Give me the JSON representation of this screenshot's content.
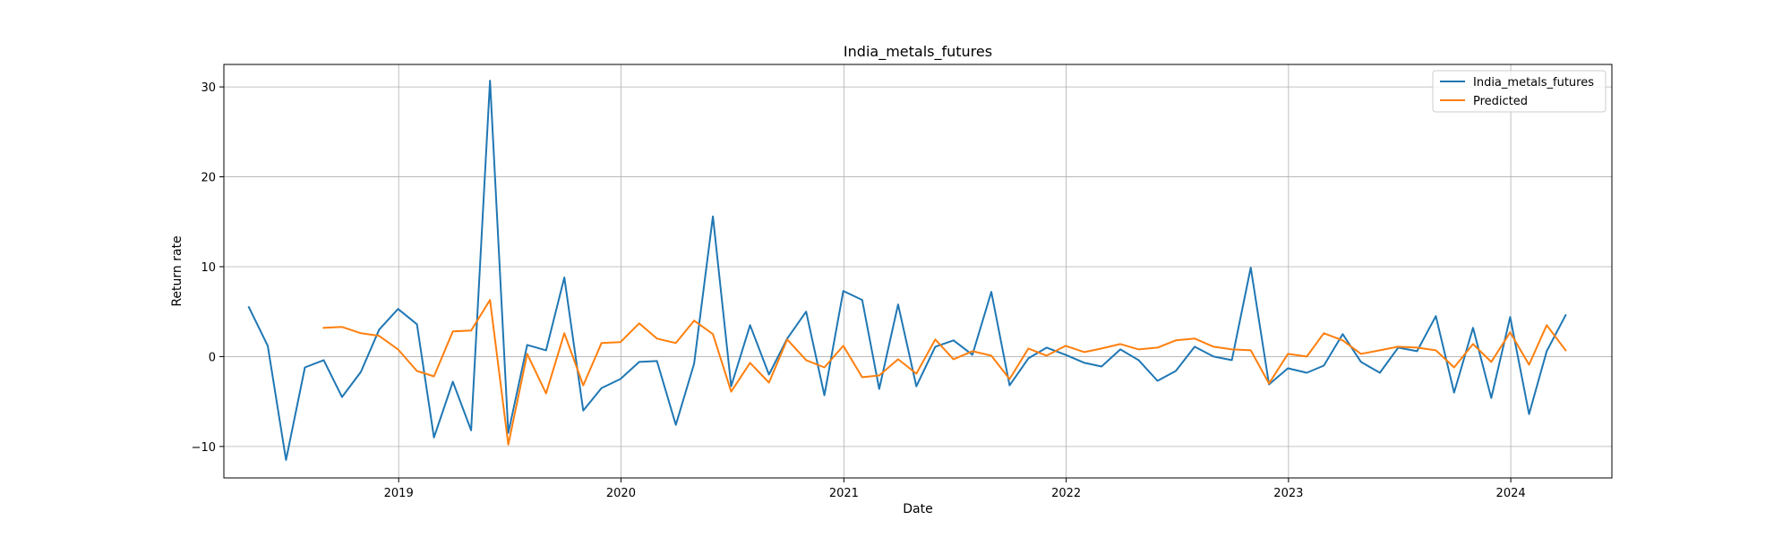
{
  "chart_data": {
    "type": "line",
    "title": "India_metals_futures",
    "xlabel": "Date",
    "ylabel": "Return rate",
    "xlim": [
      "2018-03-20",
      "2024-06-15"
    ],
    "ylim": [
      -13.5,
      32.5
    ],
    "x_ticks": [
      "2019",
      "2020",
      "2021",
      "2022",
      "2023",
      "2024"
    ],
    "y_ticks": [
      -10,
      0,
      10,
      20,
      30
    ],
    "grid": true,
    "legend_position": "top-right",
    "series": [
      {
        "name": "India_metals_futures",
        "color": "#1f77b4",
        "points": [
          [
            "2018-04-30",
            5.5
          ],
          [
            "2018-05-31",
            1.2
          ],
          [
            "2018-06-30",
            -11.5
          ],
          [
            "2018-07-31",
            -1.2
          ],
          [
            "2018-08-31",
            -0.4
          ],
          [
            "2018-09-30",
            -4.5
          ],
          [
            "2018-10-31",
            -1.7
          ],
          [
            "2018-11-30",
            3.0
          ],
          [
            "2018-12-31",
            5.3
          ],
          [
            "2019-01-31",
            3.6
          ],
          [
            "2019-02-28",
            -9.0
          ],
          [
            "2019-03-31",
            -2.8
          ],
          [
            "2019-04-30",
            -8.2
          ],
          [
            "2019-05-31",
            30.7
          ],
          [
            "2019-06-30",
            -8.5
          ],
          [
            "2019-07-31",
            1.3
          ],
          [
            "2019-08-31",
            0.7
          ],
          [
            "2019-09-30",
            8.8
          ],
          [
            "2019-10-31",
            -6.0
          ],
          [
            "2019-11-30",
            -3.5
          ],
          [
            "2019-12-31",
            -2.5
          ],
          [
            "2020-01-31",
            -0.6
          ],
          [
            "2020-02-29",
            -0.5
          ],
          [
            "2020-03-31",
            -7.6
          ],
          [
            "2020-04-30",
            -0.8
          ],
          [
            "2020-05-31",
            15.6
          ],
          [
            "2020-06-30",
            -3.3
          ],
          [
            "2020-07-31",
            3.5
          ],
          [
            "2020-08-31",
            -2.0
          ],
          [
            "2020-09-30",
            2.0
          ],
          [
            "2020-10-31",
            5.0
          ],
          [
            "2020-11-30",
            -4.3
          ],
          [
            "2020-12-31",
            7.3
          ],
          [
            "2021-01-31",
            6.3
          ],
          [
            "2021-02-28",
            -3.6
          ],
          [
            "2021-03-31",
            5.8
          ],
          [
            "2021-04-30",
            -3.3
          ],
          [
            "2021-05-31",
            1.1
          ],
          [
            "2021-06-30",
            1.8
          ],
          [
            "2021-07-31",
            0.2
          ],
          [
            "2021-08-31",
            7.2
          ],
          [
            "2021-09-30",
            -3.2
          ],
          [
            "2021-10-31",
            -0.2
          ],
          [
            "2021-11-30",
            1.0
          ],
          [
            "2021-12-31",
            0.2
          ],
          [
            "2022-01-31",
            -0.7
          ],
          [
            "2022-02-28",
            -1.1
          ],
          [
            "2022-03-31",
            0.8
          ],
          [
            "2022-04-30",
            -0.4
          ],
          [
            "2022-05-31",
            -2.7
          ],
          [
            "2022-06-30",
            -1.6
          ],
          [
            "2022-07-31",
            1.1
          ],
          [
            "2022-08-31",
            0.0
          ],
          [
            "2022-09-30",
            -0.4
          ],
          [
            "2022-10-31",
            9.9
          ],
          [
            "2022-11-30",
            -3.1
          ],
          [
            "2022-12-31",
            -1.3
          ],
          [
            "2023-01-31",
            -1.8
          ],
          [
            "2023-02-28",
            -1.0
          ],
          [
            "2023-03-31",
            2.5
          ],
          [
            "2023-04-30",
            -0.6
          ],
          [
            "2023-05-31",
            -1.8
          ],
          [
            "2023-06-30",
            1.0
          ],
          [
            "2023-07-31",
            0.6
          ],
          [
            "2023-08-31",
            4.5
          ],
          [
            "2023-09-30",
            -4.0
          ],
          [
            "2023-10-31",
            3.2
          ],
          [
            "2023-11-30",
            -4.6
          ],
          [
            "2023-12-31",
            4.4
          ],
          [
            "2024-01-31",
            -6.4
          ],
          [
            "2024-02-29",
            0.6
          ],
          [
            "2024-03-31",
            4.6
          ]
        ]
      },
      {
        "name": "Predicted",
        "color": "#ff7f0e",
        "points": [
          [
            "2018-08-31",
            3.2
          ],
          [
            "2018-09-30",
            3.3
          ],
          [
            "2018-10-31",
            2.6
          ],
          [
            "2018-11-30",
            2.3
          ],
          [
            "2018-12-31",
            0.8
          ],
          [
            "2019-01-31",
            -1.6
          ],
          [
            "2019-02-28",
            -2.2
          ],
          [
            "2019-03-31",
            2.8
          ],
          [
            "2019-04-30",
            2.9
          ],
          [
            "2019-05-31",
            6.3
          ],
          [
            "2019-06-30",
            -9.8
          ],
          [
            "2019-07-31",
            0.3
          ],
          [
            "2019-08-31",
            -4.1
          ],
          [
            "2019-09-30",
            2.6
          ],
          [
            "2019-10-31",
            -3.2
          ],
          [
            "2019-11-30",
            1.5
          ],
          [
            "2019-12-31",
            1.6
          ],
          [
            "2020-01-31",
            3.7
          ],
          [
            "2020-02-29",
            2.0
          ],
          [
            "2020-03-31",
            1.5
          ],
          [
            "2020-04-30",
            4.0
          ],
          [
            "2020-05-31",
            2.5
          ],
          [
            "2020-06-30",
            -3.9
          ],
          [
            "2020-07-31",
            -0.7
          ],
          [
            "2020-08-31",
            -2.9
          ],
          [
            "2020-09-30",
            1.9
          ],
          [
            "2020-10-31",
            -0.4
          ],
          [
            "2020-11-30",
            -1.2
          ],
          [
            "2020-12-31",
            1.2
          ],
          [
            "2021-01-31",
            -2.3
          ],
          [
            "2021-02-28",
            -2.1
          ],
          [
            "2021-03-31",
            -0.3
          ],
          [
            "2021-04-30",
            -1.9
          ],
          [
            "2021-05-31",
            1.9
          ],
          [
            "2021-06-30",
            -0.3
          ],
          [
            "2021-07-31",
            0.6
          ],
          [
            "2021-08-31",
            0.1
          ],
          [
            "2021-09-30",
            -2.5
          ],
          [
            "2021-10-31",
            0.9
          ],
          [
            "2021-11-30",
            0.1
          ],
          [
            "2021-12-31",
            1.2
          ],
          [
            "2022-01-31",
            0.5
          ],
          [
            "2022-02-28",
            0.9
          ],
          [
            "2022-03-31",
            1.4
          ],
          [
            "2022-04-30",
            0.8
          ],
          [
            "2022-05-31",
            1.0
          ],
          [
            "2022-06-30",
            1.8
          ],
          [
            "2022-07-31",
            2.0
          ],
          [
            "2022-08-31",
            1.1
          ],
          [
            "2022-09-30",
            0.8
          ],
          [
            "2022-10-31",
            0.7
          ],
          [
            "2022-11-30",
            -3.0
          ],
          [
            "2022-12-31",
            0.3
          ],
          [
            "2023-01-31",
            0.0
          ],
          [
            "2023-02-28",
            2.6
          ],
          [
            "2023-03-31",
            1.8
          ],
          [
            "2023-04-30",
            0.3
          ],
          [
            "2023-05-31",
            0.7
          ],
          [
            "2023-06-30",
            1.1
          ],
          [
            "2023-07-31",
            1.0
          ],
          [
            "2023-08-31",
            0.7
          ],
          [
            "2023-09-30",
            -1.2
          ],
          [
            "2023-10-31",
            1.4
          ],
          [
            "2023-11-30",
            -0.6
          ],
          [
            "2023-12-31",
            2.7
          ],
          [
            "2024-01-31",
            -0.9
          ],
          [
            "2024-02-29",
            3.5
          ],
          [
            "2024-03-31",
            0.7
          ]
        ]
      }
    ]
  }
}
